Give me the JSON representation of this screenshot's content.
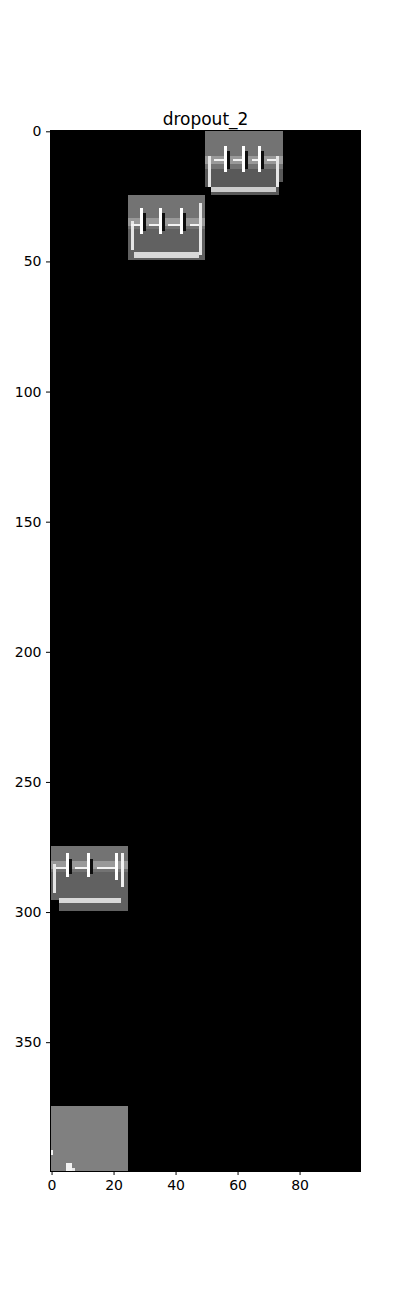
{
  "chart_data": {
    "type": "heatmap",
    "title": "dropout_2",
    "xlim": [
      -0.5,
      99.5
    ],
    "ylim": [
      399.5,
      -0.5
    ],
    "xticks": [
      0,
      20,
      40,
      60,
      80
    ],
    "yticks": [
      0,
      50,
      100,
      150,
      200,
      250,
      300,
      350
    ],
    "clim": [
      0,
      1
    ],
    "cells": [
      [
        -0.5,
        -0.5,
        99.5,
        399.5,
        0
      ],
      [
        49.5,
        -0.5,
        74.5,
        14.5,
        0.45
      ],
      [
        49.5,
        14.5,
        74.5,
        24.5,
        0.35
      ],
      [
        49.5,
        9.5,
        74.5,
        12.5,
        0.6
      ],
      [
        50.5,
        9.5,
        51.5,
        21.5,
        0.9
      ],
      [
        72.5,
        9.5,
        73.5,
        21.5,
        0.9
      ],
      [
        51.5,
        21.5,
        72.5,
        23.5,
        0.8
      ],
      [
        49.5,
        21.5,
        51.5,
        24.5,
        0
      ],
      [
        73.5,
        19.5,
        74.5,
        24.5,
        0
      ],
      [
        55.5,
        5.5,
        56.5,
        15.5,
        1
      ],
      [
        56.5,
        7.5,
        57.5,
        14.5,
        0.05
      ],
      [
        61.5,
        5.5,
        62.5,
        15.5,
        1
      ],
      [
        62.5,
        7.5,
        63.5,
        14.5,
        0.05
      ],
      [
        66.5,
        5.5,
        67.5,
        15.5,
        1
      ],
      [
        67.5,
        7.5,
        68.5,
        14.5,
        0.05
      ],
      [
        52.5,
        10.5,
        55.5,
        11.5,
        0.95
      ],
      [
        58.5,
        10.5,
        61.5,
        11.5,
        0.95
      ],
      [
        64.5,
        10.5,
        66.5,
        11.5,
        0.95
      ],
      [
        69.5,
        10.5,
        72.5,
        11.5,
        0.95
      ],
      [
        24.5,
        24.5,
        49.5,
        37.5,
        0.45
      ],
      [
        24.5,
        37.5,
        49.5,
        49.5,
        0.38
      ],
      [
        24.5,
        33.5,
        49.5,
        36.5,
        0.6
      ],
      [
        25.5,
        34.5,
        26.5,
        45.5,
        0.9
      ],
      [
        47.5,
        27.5,
        48.5,
        47.5,
        0.9
      ],
      [
        26.5,
        46.5,
        47.5,
        48.5,
        0.85
      ],
      [
        28.5,
        29.5,
        29.5,
        39.5,
        1
      ],
      [
        29.5,
        31.5,
        30.5,
        38.5,
        0.05
      ],
      [
        34.5,
        29.5,
        35.5,
        39.5,
        1
      ],
      [
        35.5,
        31.5,
        36.5,
        38.5,
        0.05
      ],
      [
        41.5,
        29.5,
        42.5,
        39.5,
        1
      ],
      [
        42.5,
        31.5,
        43.5,
        38.5,
        0.05
      ],
      [
        25.5,
        35.5,
        28.5,
        36.5,
        0.95
      ],
      [
        31.5,
        35.5,
        34.5,
        36.5,
        0.95
      ],
      [
        37.5,
        35.5,
        41.5,
        36.5,
        0.95
      ],
      [
        44.5,
        35.5,
        47.5,
        36.5,
        0.95
      ],
      [
        -0.5,
        274.5,
        24.5,
        284.5,
        0.45
      ],
      [
        -0.5,
        284.5,
        24.5,
        299.5,
        0.38
      ],
      [
        -0.5,
        280.5,
        24.5,
        283.5,
        0.6
      ],
      [
        0.5,
        281.5,
        1.5,
        292.5,
        0.9
      ],
      [
        22.5,
        277.5,
        23.5,
        290.5,
        0.95
      ],
      [
        2.5,
        294.5,
        22.5,
        296.5,
        0.85
      ],
      [
        -0.5,
        295.5,
        2.5,
        299.5,
        0
      ],
      [
        4.5,
        277.5,
        5.5,
        286.5,
        1
      ],
      [
        5.5,
        279.5,
        6.5,
        285.5,
        0.05
      ],
      [
        11.5,
        277.5,
        12.5,
        286.5,
        1
      ],
      [
        12.5,
        279.5,
        13.5,
        285.5,
        0.05
      ],
      [
        20.5,
        277.5,
        21.5,
        287.5,
        1
      ],
      [
        1.5,
        282.5,
        4.5,
        283.5,
        0.95
      ],
      [
        7.5,
        282.5,
        11.5,
        283.5,
        0.95
      ],
      [
        14.5,
        282.5,
        20.5,
        283.5,
        0.95
      ],
      [
        -0.5,
        374.5,
        24.5,
        399.5,
        0.5
      ],
      [
        -0.5,
        391.5,
        0.5,
        393.5,
        0.95
      ],
      [
        4.5,
        396.5,
        6.5,
        399.5,
        0.95
      ],
      [
        6.5,
        398.5,
        7.5,
        399.5,
        0.9
      ]
    ]
  }
}
